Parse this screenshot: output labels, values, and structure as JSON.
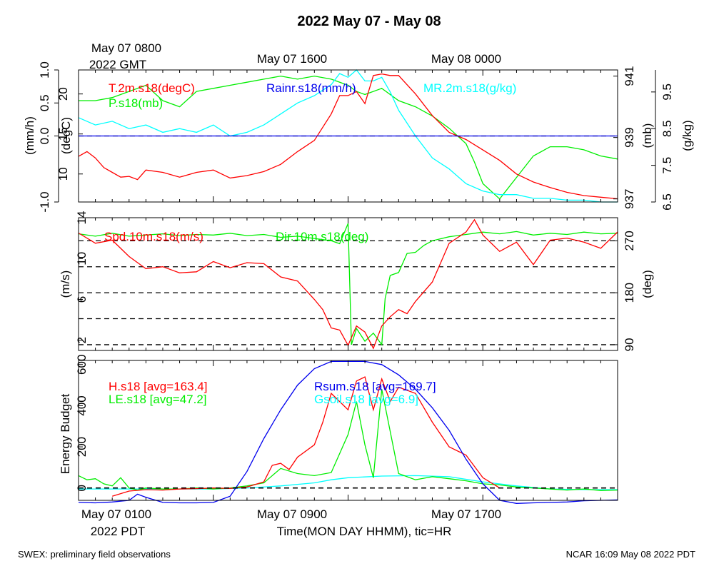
{
  "figure": {
    "title": "2022 May 07 - May 08",
    "gmt_start_line1": "May 07 0800",
    "gmt_start_line2": "2022 GMT",
    "gmt_tick_labels": [
      "May 07 1600",
      "May 08 0000"
    ],
    "pdt_tick_labels": [
      "May 07 0100",
      "May 07 0900",
      "May 07 1700"
    ],
    "pdt_year": "2022 PDT",
    "xlabel": "Time(MON DAY HHMM), tic=HR",
    "footer_left": "SWEX: preliminary field observations",
    "footer_right": "NCAR 16:09 May 08 2022 PDT"
  },
  "chart_data": [
    {
      "type": "line",
      "panel": "top",
      "x_unit": "hours since May 07 0100 PDT",
      "xlim": [
        0,
        32
      ],
      "axes": {
        "rain": {
          "label": "(mm/h)",
          "ylim": [
            -1.0,
            1.0
          ],
          "ticks": [
            -1.0,
            0.0,
            0.5,
            1.0
          ],
          "tick_labels": [
            "-1.0",
            "0.0",
            "0.5",
            "1.0"
          ]
        },
        "temp": {
          "label": "(degC)",
          "ylim": [
            6.5,
            23
          ],
          "ticks": [
            10,
            15,
            20
          ],
          "tick_labels": [
            "10",
            "15",
            "20"
          ]
        },
        "press": {
          "label": "(mb)",
          "ylim": [
            936.9,
            941.2
          ],
          "ticks": [
            937,
            939,
            941
          ],
          "tick_labels": [
            "937",
            "939",
            "941"
          ]
        },
        "mr": {
          "label": "(g/kg)",
          "ylim": [
            6.5,
            10.1
          ],
          "ticks": [
            6.5,
            7.5,
            8.5,
            9.5
          ],
          "tick_labels": [
            "6.5",
            "7.5",
            "8.5",
            "9.5"
          ]
        }
      },
      "series": [
        {
          "name": "T.2m.s18(degC)",
          "axis": "temp",
          "color": "#ff0000",
          "x": [
            0,
            0.5,
            1,
            1.5,
            2,
            2.5,
            3,
            3.5,
            4,
            5,
            6,
            7,
            8,
            9,
            10,
            11,
            12,
            13,
            14,
            15,
            15.5,
            16,
            16.5,
            17,
            17.5,
            18,
            18.5,
            19,
            20,
            21,
            22,
            23,
            24,
            25,
            26,
            27,
            28,
            29,
            30,
            31,
            32
          ],
          "y": [
            12.2,
            12.8,
            12.0,
            10.8,
            10.2,
            9.6,
            9.7,
            9.3,
            10.5,
            10.2,
            9.6,
            10.2,
            10.5,
            9.5,
            9.8,
            10.3,
            11.2,
            12.8,
            14.2,
            17.5,
            19.8,
            19.8,
            20.3,
            18.8,
            22.3,
            22.5,
            22.3,
            22.3,
            20.0,
            17.3,
            15.2,
            14.3,
            13.0,
            11.7,
            10.0,
            9.0,
            8.3,
            7.7,
            7.3,
            7.1,
            6.9
          ]
        },
        {
          "name": "P.s18(mb)",
          "axis": "press",
          "color": "#00ee00",
          "x": [
            0,
            1,
            2,
            3,
            4,
            5,
            6,
            7,
            8,
            9,
            10,
            11,
            12,
            13,
            14,
            15,
            16,
            16.5,
            17,
            18,
            19,
            20,
            21,
            22,
            23,
            23.5,
            24,
            25,
            26,
            27,
            28,
            29,
            30,
            31,
            32
          ],
          "y": [
            940.2,
            940.2,
            940.3,
            940.5,
            940.7,
            940.2,
            940.0,
            940.5,
            940.6,
            940.7,
            940.8,
            940.9,
            941.0,
            940.9,
            941.0,
            940.9,
            940.7,
            940.5,
            940.4,
            940.6,
            940.2,
            940.0,
            939.7,
            939.3,
            938.8,
            938.2,
            937.5,
            937.0,
            937.7,
            938.4,
            938.7,
            938.7,
            938.6,
            938.4,
            938.3
          ]
        },
        {
          "name": "MR.2m.s18(g/kg)",
          "axis": "mr",
          "color": "#00ffff",
          "x": [
            0,
            1,
            2,
            3,
            4,
            5,
            6,
            7,
            8,
            9,
            10,
            11,
            12,
            13,
            14,
            15,
            15.5,
            16,
            16.5,
            17,
            17.5,
            18,
            18.5,
            19,
            20,
            21,
            22,
            23,
            24,
            25,
            26,
            27,
            28,
            29,
            30,
            31,
            32
          ],
          "y": [
            8.8,
            8.6,
            8.7,
            8.5,
            8.6,
            8.4,
            8.5,
            8.4,
            8.6,
            8.3,
            8.4,
            8.6,
            8.9,
            9.2,
            9.4,
            9.7,
            10.0,
            9.9,
            10.1,
            9.8,
            9.8,
            9.9,
            9.5,
            9.0,
            8.3,
            7.7,
            7.4,
            7.0,
            6.8,
            6.7,
            6.7,
            6.6,
            6.6,
            6.55,
            6.55,
            6.5,
            6.5
          ]
        },
        {
          "name": "Rainr.s18(mm/h)",
          "axis": "rain",
          "color": "#0000ee",
          "x": [
            0,
            32
          ],
          "y": [
            0,
            0
          ]
        }
      ]
    },
    {
      "type": "line",
      "panel": "middle",
      "x_unit": "hours since May 07 0100 PDT",
      "xlim": [
        0,
        32
      ],
      "axes": {
        "spd": {
          "label": "(m/s)",
          "ylim": [
            1,
            14
          ],
          "ticks": [
            2,
            6,
            10,
            14
          ],
          "tick_labels": [
            "2",
            "6",
            "10",
            "14"
          ]
        },
        "dir": {
          "label": "(deg)",
          "ylim": [
            80,
            310
          ],
          "ticks": [
            90,
            180,
            270
          ],
          "tick_labels": [
            "90",
            "180",
            "270"
          ],
          "dashed_gridlines": [
            90,
            135,
            180,
            225,
            270
          ]
        }
      },
      "series": [
        {
          "name": "Spd.10m.s18(m/s)",
          "axis": "spd",
          "color": "#ff0000",
          "x": [
            0,
            1,
            2,
            3,
            4,
            5,
            6,
            7,
            8,
            9,
            10,
            11,
            12,
            13,
            14,
            14.5,
            15,
            15.5,
            16,
            16.5,
            17,
            17.5,
            18,
            18.5,
            19,
            19.5,
            20,
            21,
            22,
            23,
            23.5,
            24,
            25,
            26,
            27,
            28,
            29,
            30,
            31,
            32
          ],
          "y": [
            12.5,
            11.5,
            11.8,
            10.2,
            9.0,
            9.2,
            8.6,
            8.7,
            9.7,
            9.1,
            9.6,
            9.5,
            8.2,
            7.8,
            6.0,
            5.0,
            3.2,
            3.0,
            1.5,
            3.4,
            2.8,
            1.2,
            3.4,
            4.3,
            5.0,
            4.6,
            5.8,
            7.7,
            11.5,
            12.6,
            13.8,
            12.3,
            10.7,
            11.6,
            9.4,
            11.8,
            12.0,
            11.6,
            11.0,
            12.6
          ]
        },
        {
          "name": "Dir.10m.s18(deg)",
          "axis": "dir",
          "color": "#00ee00",
          "x": [
            0,
            1,
            2,
            3,
            4,
            5,
            6,
            7,
            8,
            9,
            10,
            11,
            12,
            13,
            14,
            15,
            15.5,
            16,
            16.2,
            16.5,
            17,
            17.5,
            18,
            18.2,
            18.5,
            19,
            19.5,
            20,
            20.5,
            21,
            22,
            23,
            24,
            25,
            26,
            27,
            28,
            29,
            30,
            31,
            32
          ],
          "y": [
            282,
            278,
            283,
            278,
            280,
            282,
            279,
            281,
            280,
            283,
            279,
            281,
            276,
            278,
            274,
            270,
            265,
            300,
            90,
            118,
            96,
            110,
            90,
            170,
            210,
            215,
            248,
            250,
            262,
            270,
            277,
            281,
            285,
            282,
            286,
            280,
            283,
            281,
            285,
            282,
            283
          ]
        }
      ]
    },
    {
      "type": "line",
      "panel": "bottom",
      "x_unit": "hours since May 07 0100 PDT",
      "xlim": [
        0,
        32
      ],
      "ylabel": "Energy Budget",
      "ylim": [
        -60,
        620
      ],
      "yticks": [
        0,
        200,
        400,
        600
      ],
      "ytick_labels": [
        "0",
        "200",
        "400",
        "600"
      ],
      "series": [
        {
          "name": "H.s18 [avg=163.4]",
          "color": "#ff0000",
          "x": [
            2,
            3,
            4,
            5,
            6,
            7,
            8,
            9,
            10,
            11,
            11.5,
            12,
            12.5,
            13,
            14,
            14.5,
            15,
            15.5,
            16,
            16.5,
            17,
            17.5,
            18,
            18.5,
            19,
            20,
            21,
            22,
            23,
            24,
            25
          ],
          "y": [
            -40,
            -15,
            -8,
            -10,
            -5,
            -3,
            0,
            -2,
            5,
            30,
            110,
            120,
            90,
            150,
            210,
            320,
            460,
            420,
            380,
            520,
            540,
            380,
            530,
            420,
            490,
            460,
            320,
            200,
            160,
            50,
            0
          ]
        },
        {
          "name": "LE.s18 [avg=47.2]",
          "color": "#00ee00",
          "x": [
            0,
            0.5,
            1,
            1.5,
            2,
            2.5,
            3,
            3.5,
            4,
            5,
            6,
            7,
            8,
            9,
            10,
            11,
            12,
            13,
            14,
            15,
            16,
            16.5,
            17,
            17.5,
            18,
            19,
            20,
            21,
            22,
            23,
            24,
            25,
            26,
            27,
            28,
            29,
            30,
            31,
            32
          ],
          "y": [
            60,
            40,
            45,
            20,
            10,
            50,
            0,
            -10,
            0,
            -5,
            -5,
            0,
            -5,
            0,
            10,
            25,
            95,
            70,
            60,
            75,
            260,
            420,
            210,
            50,
            480,
            70,
            40,
            55,
            45,
            35,
            20,
            15,
            5,
            0,
            -5,
            -10,
            -5,
            -12,
            -10
          ]
        },
        {
          "name": "Rsum.s18 [avg=169.7]",
          "color": "#0000ee",
          "x": [
            0,
            1,
            2,
            3,
            3.5,
            4,
            5,
            6,
            7,
            8,
            9,
            10,
            11,
            12,
            13,
            14,
            15,
            16,
            17,
            18,
            19,
            20,
            21,
            22,
            23,
            24,
            25,
            26,
            27,
            28,
            29,
            30,
            31,
            32
          ],
          "y": [
            -70,
            -72,
            -68,
            -60,
            -30,
            -45,
            -70,
            -72,
            -72,
            -70,
            -40,
            80,
            240,
            380,
            500,
            580,
            615,
            615,
            615,
            600,
            550,
            480,
            390,
            280,
            140,
            20,
            -60,
            -75,
            -72,
            -70,
            -68,
            -62,
            -60,
            -58
          ]
        },
        {
          "name": "Gsoil.s18 [avg=6.9]",
          "color": "#00ffff",
          "x": [
            0,
            8,
            10,
            12,
            14,
            15,
            16,
            18,
            20,
            22,
            24,
            26,
            28,
            30,
            32
          ],
          "y": [
            -5,
            -5,
            0,
            10,
            25,
            40,
            50,
            58,
            60,
            55,
            30,
            10,
            -5,
            -8,
            -8
          ]
        }
      ]
    }
  ]
}
